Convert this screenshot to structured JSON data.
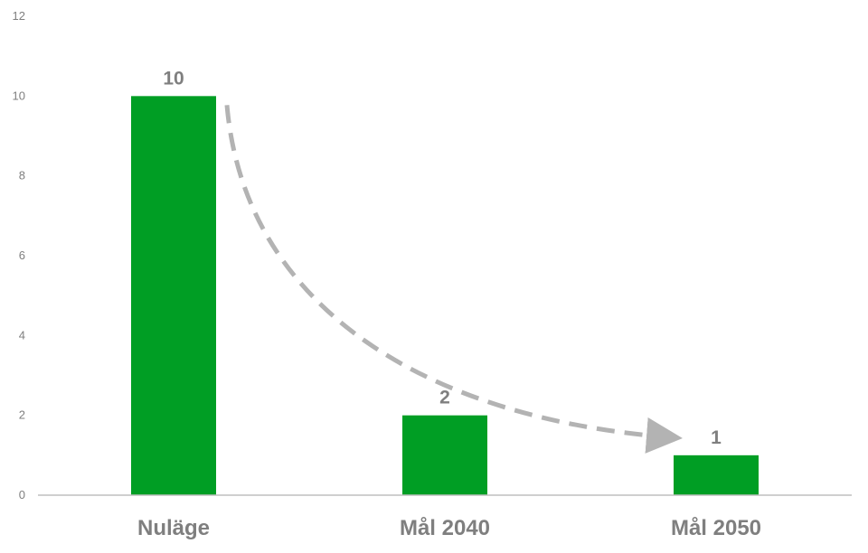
{
  "chart_data": {
    "type": "bar",
    "categories": [
      "Nuläge",
      "Mål 2040",
      "Mål 2050"
    ],
    "values": [
      10,
      2,
      1
    ],
    "data_labels": [
      "10",
      "2",
      "1"
    ],
    "ylim": [
      0,
      12
    ],
    "yticks": [
      0,
      2,
      4,
      6,
      8,
      10,
      12
    ],
    "ytick_labels": [
      "0",
      "2",
      "4",
      "6",
      "8",
      "10",
      "12"
    ],
    "title": "",
    "xlabel": "",
    "ylabel": "",
    "grid": false,
    "legend": "none",
    "bar_color": "#009e24",
    "axis_color": "#bfbfbf",
    "trend_arrow": {
      "style": "dashed",
      "color": "#b3b3b3",
      "from_category": "Nuläge",
      "to_category": "Mål 2050"
    }
  }
}
